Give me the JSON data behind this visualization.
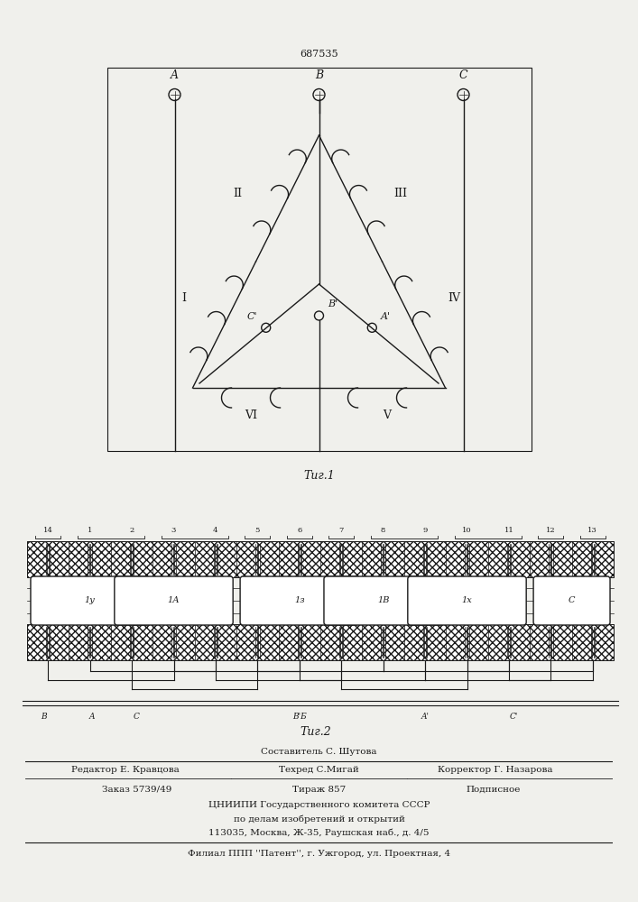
{
  "patent_number": "687535",
  "fig1_caption": "Τиг.1",
  "fig2_caption": "Τиг.2",
  "bg_color": "#f0f0ec",
  "line_color": "#1a1a1a",
  "footer_line1": "Составитель С. Шутова",
  "footer_line2_left": "Редактор Е. Кравцова",
  "footer_line2_mid": "Техред С.Мигай",
  "footer_line2_right": "Корректор Г. Назарова",
  "footer_line3_left": "Заказ 5739/49",
  "footer_line3_mid": "Тираж 857",
  "footer_line3_right": "Подписное",
  "footer_line4": "ЦНИИПИ Государственного комитета СССР",
  "footer_line5": "по делам изобретений и открытий",
  "footer_line6": "113035, Москва, Ж-35, Раушская наб., д. 4/5",
  "footer_line7": "Филиал ППП ''Патент'', г. Ужгород, ул. Проектная, 4"
}
